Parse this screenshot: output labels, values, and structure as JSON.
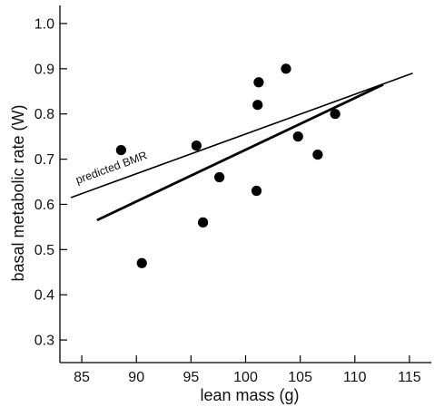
{
  "chart_data": {
    "type": "scatter",
    "xlabel": "lean mass (g)",
    "ylabel": "basal metabolic rate (W)",
    "xlim": [
      83,
      117
    ],
    "ylim": [
      0.25,
      1.04
    ],
    "x_ticks": [
      85,
      90,
      95,
      100,
      105,
      110,
      115
    ],
    "y_ticks": [
      0.3,
      0.4,
      0.5,
      0.6,
      0.7,
      0.8,
      0.9,
      1.0
    ],
    "x_tick_labels": [
      "85",
      "90",
      "95",
      "100",
      "105",
      "110",
      "115"
    ],
    "y_tick_labels": [
      "0.3",
      "0.4",
      "0.5",
      "0.6",
      "0.7",
      "0.8",
      "0.9",
      "1.0"
    ],
    "grid": false,
    "points": [
      {
        "x": 88.6,
        "y": 0.72
      },
      {
        "x": 90.5,
        "y": 0.47
      },
      {
        "x": 95.5,
        "y": 0.73
      },
      {
        "x": 96.1,
        "y": 0.56
      },
      {
        "x": 97.6,
        "y": 0.66
      },
      {
        "x": 101.0,
        "y": 0.63
      },
      {
        "x": 101.1,
        "y": 0.82
      },
      {
        "x": 101.2,
        "y": 0.87
      },
      {
        "x": 103.7,
        "y": 0.9
      },
      {
        "x": 104.8,
        "y": 0.75
      },
      {
        "x": 106.6,
        "y": 0.71
      },
      {
        "x": 108.2,
        "y": 0.8
      }
    ],
    "lines": [
      {
        "label": "predicted BMR",
        "x1": 84.0,
        "y1": 0.615,
        "x2": 115.3,
        "y2": 0.89
      },
      {
        "label": "",
        "x1": 86.4,
        "y1": 0.565,
        "x2": 112.6,
        "y2": 0.865
      }
    ],
    "annotations": [
      {
        "text": "predicted BMR",
        "x": 84.6,
        "y": 0.645
      }
    ]
  }
}
